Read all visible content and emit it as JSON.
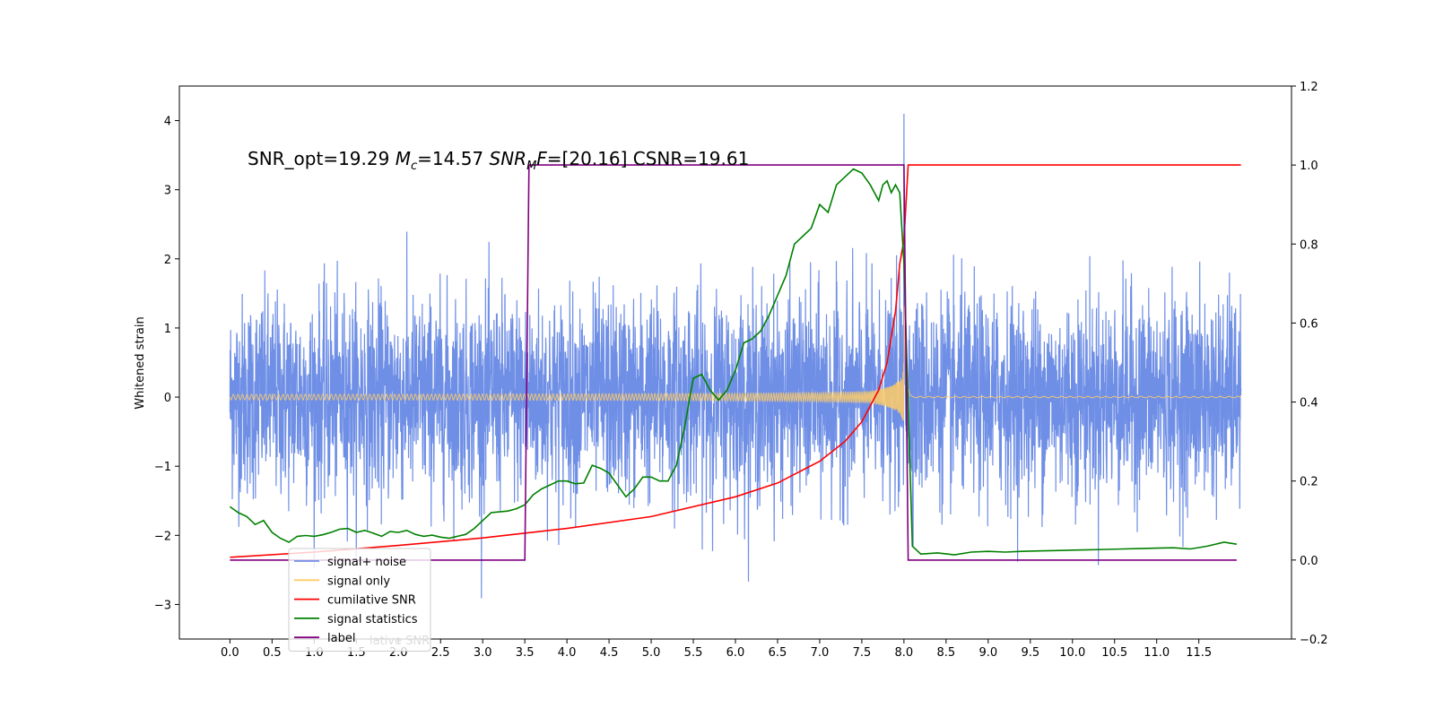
{
  "chart_data": {
    "type": "line",
    "title": "SNR_opt=19.29 $M_c$=14.57  $SNR_MF$=[20.16] CSNR=19.61",
    "title_parts": {
      "a": "SNR_opt=19.29 ",
      "b_var": "M",
      "b_sub": "c",
      "c": "=14.57  ",
      "d_var": "SNR",
      "d_sub": "M",
      "d_var2": "F",
      "e": "=[20.16] CSNR=19.61"
    },
    "xlabel": "",
    "ylabel": "Whitened strain",
    "y2label": "",
    "xlim": [
      -0.6,
      12.6
    ],
    "ylim": [
      -3.5,
      4.5
    ],
    "y2lim": [
      -0.2,
      1.2
    ],
    "x_ticks": [
      "0.0",
      "0.5",
      "1.0",
      "1.5",
      "2.0",
      "2.5",
      "3.0",
      "3.5",
      "4.0",
      "4.5",
      "5.0",
      "5.5",
      "6.0",
      "6.5",
      "7.0",
      "7.5",
      "8.0",
      "8.5",
      "9.0",
      "9.5",
      "10.0",
      "10.5",
      "11.0",
      "11.5"
    ],
    "y_ticks": [
      "−3",
      "−2",
      "−1",
      "0",
      "1",
      "2",
      "3",
      "4"
    ],
    "y2_ticks": [
      "−0.2",
      "0.0",
      "0.2",
      "0.4",
      "0.6",
      "0.8",
      "1.0",
      "1.2"
    ],
    "grid": false,
    "legend_position": "lower-left",
    "legend": [
      {
        "label": "signal+ noise",
        "color": "#6f8fe6"
      },
      {
        "label": "signal only",
        "color": "#ffcc66"
      },
      {
        "label": "cumilative SNR",
        "color": "#ff0000"
      },
      {
        "label": "signal statistics",
        "color": "#008000"
      },
      {
        "label": "label",
        "color": "#800080"
      }
    ],
    "legend_ghost_text": "lative SNR",
    "series": [
      {
        "name": "signal+ noise",
        "axis": "left",
        "description": "whitened noise plus signal, Gaussian around 0 with ~0.8 std, spikes to 4.1 near 8.0",
        "x_range": [
          0.0,
          12.0
        ],
        "peak": {
          "x": 8.0,
          "y": 4.1
        },
        "color": "#6f8fe6"
      },
      {
        "name": "signal only",
        "axis": "left",
        "description": "chirp waveform growing in amplitude until merger at ~8.0s then ringing down to 0",
        "x_range": [
          0.0,
          12.0
        ],
        "merger_x": 8.0,
        "color": "#ffcc66"
      },
      {
        "name": "cumilative SNR",
        "axis": "right",
        "x": [
          0.0,
          1.0,
          2.0,
          3.0,
          4.0,
          5.0,
          6.0,
          6.5,
          7.0,
          7.3,
          7.5,
          7.7,
          7.8,
          7.9,
          7.95,
          8.0,
          8.05,
          12.0
        ],
        "y": [
          0.007,
          0.02,
          0.037,
          0.056,
          0.08,
          0.11,
          0.16,
          0.195,
          0.25,
          0.3,
          0.35,
          0.43,
          0.5,
          0.63,
          0.75,
          0.81,
          1.0,
          1.0
        ],
        "color": "#ff0000"
      },
      {
        "name": "signal statistics",
        "axis": "right",
        "x": [
          0.0,
          0.1,
          0.2,
          0.3,
          0.4,
          0.5,
          0.6,
          0.7,
          0.8,
          0.9,
          1.0,
          1.1,
          1.2,
          1.3,
          1.4,
          1.5,
          1.6,
          1.7,
          1.8,
          1.9,
          2.0,
          2.1,
          2.2,
          2.3,
          2.4,
          2.5,
          2.6,
          2.7,
          2.8,
          2.9,
          3.0,
          3.1,
          3.2,
          3.3,
          3.4,
          3.5,
          3.6,
          3.7,
          3.8,
          3.9,
          4.0,
          4.1,
          4.2,
          4.3,
          4.4,
          4.5,
          4.6,
          4.7,
          4.8,
          4.9,
          5.0,
          5.1,
          5.2,
          5.3,
          5.4,
          5.5,
          5.6,
          5.7,
          5.8,
          5.9,
          6.0,
          6.1,
          6.2,
          6.3,
          6.4,
          6.5,
          6.6,
          6.7,
          6.8,
          6.9,
          7.0,
          7.1,
          7.2,
          7.3,
          7.4,
          7.5,
          7.6,
          7.7,
          7.75,
          7.8,
          7.85,
          7.9,
          7.95,
          8.0,
          8.1,
          8.2,
          8.4,
          8.6,
          8.8,
          9.0,
          9.2,
          9.4,
          9.6,
          9.8,
          10.0,
          10.2,
          10.4,
          10.6,
          10.8,
          11.0,
          11.2,
          11.4,
          11.6,
          11.8,
          11.95
        ],
        "y": [
          0.135,
          0.12,
          0.11,
          0.09,
          0.1,
          0.07,
          0.055,
          0.045,
          0.06,
          0.062,
          0.06,
          0.064,
          0.07,
          0.078,
          0.08,
          0.07,
          0.075,
          0.068,
          0.06,
          0.072,
          0.07,
          0.075,
          0.065,
          0.06,
          0.063,
          0.058,
          0.055,
          0.06,
          0.065,
          0.08,
          0.1,
          0.12,
          0.122,
          0.124,
          0.13,
          0.14,
          0.165,
          0.18,
          0.19,
          0.2,
          0.2,
          0.193,
          0.195,
          0.24,
          0.232,
          0.22,
          0.19,
          0.16,
          0.18,
          0.21,
          0.21,
          0.2,
          0.2,
          0.24,
          0.34,
          0.46,
          0.47,
          0.43,
          0.405,
          0.43,
          0.48,
          0.55,
          0.56,
          0.58,
          0.62,
          0.67,
          0.72,
          0.8,
          0.82,
          0.84,
          0.9,
          0.88,
          0.95,
          0.97,
          0.99,
          0.98,
          0.95,
          0.91,
          0.95,
          0.96,
          0.93,
          0.95,
          0.93,
          0.75,
          0.035,
          0.015,
          0.018,
          0.013,
          0.02,
          0.022,
          0.02,
          0.022,
          0.023,
          0.024,
          0.025,
          0.026,
          0.027,
          0.028,
          0.029,
          0.03,
          0.031,
          0.028,
          0.035,
          0.045,
          0.04
        ],
        "color": "#008000"
      },
      {
        "name": "label",
        "axis": "right",
        "x": [
          0.0,
          3.5,
          3.55,
          8.0,
          8.05,
          11.95
        ],
        "y": [
          0.0,
          0.0,
          1.0,
          1.0,
          0.0,
          0.0
        ],
        "color": "#800080"
      }
    ]
  }
}
